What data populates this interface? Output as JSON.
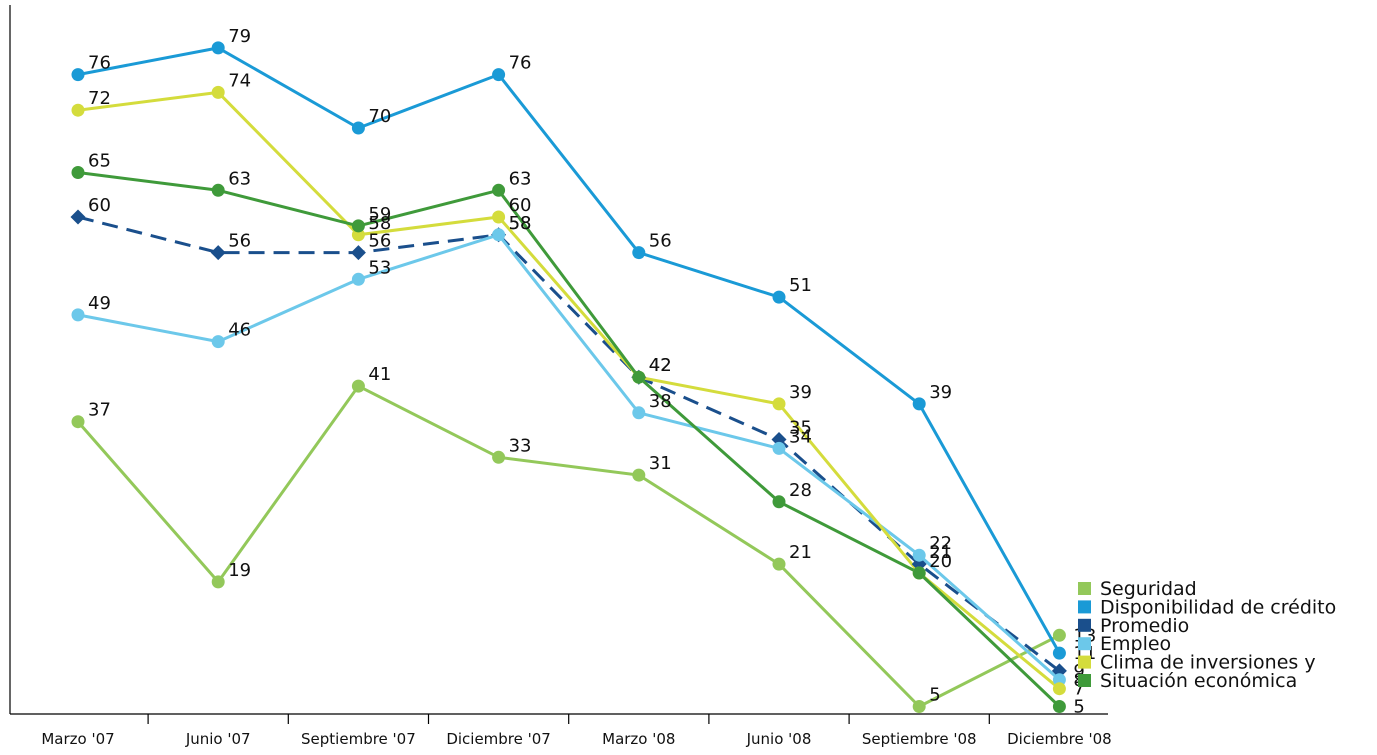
{
  "chart_data": {
    "type": "line",
    "title": "",
    "xlabel": "",
    "ylabel": "",
    "categories": [
      "Marzo '07",
      "Junio '07",
      "Septiembre '07",
      "Diciembre '07",
      "Marzo '08",
      "Junio '08",
      "Septiembre '08",
      "Diciembre '08"
    ],
    "ylim": [
      0,
      83
    ],
    "grid": false,
    "legend_position": "bottom-right",
    "legend": [
      "Seguridad",
      "Disponibilidad de crédito",
      "Promedio",
      "Empleo",
      "Clima de inversiones y",
      "Situación económica"
    ],
    "series": [
      {
        "name": "Seguridad",
        "color": "#93c85a",
        "marker": "circle",
        "dashed": false,
        "values": [
          37,
          19,
          41,
          33,
          31,
          21,
          5,
          13
        ]
      },
      {
        "name": "Disponibilidad de crédito",
        "color": "#1a9ad6",
        "marker": "circle",
        "dashed": false,
        "values": [
          76,
          79,
          70,
          76,
          56,
          51,
          39,
          11
        ]
      },
      {
        "name": "Promedio",
        "color": "#1a4f8c",
        "marker": "diamond",
        "dashed": true,
        "values": [
          60,
          56,
          56,
          58,
          42,
          35,
          21,
          9
        ]
      },
      {
        "name": "Empleo",
        "color": "#6cc8ea",
        "marker": "circle",
        "dashed": false,
        "values": [
          49,
          46,
          53,
          58,
          38,
          34,
          22,
          8
        ]
      },
      {
        "name": "Clima de inversiones y",
        "color": "#d4dc3c",
        "marker": "circle",
        "dashed": false,
        "values": [
          72,
          74,
          58,
          60,
          42,
          39,
          20,
          7
        ]
      },
      {
        "name": "Situación económica",
        "color": "#3f9a3a",
        "marker": "circle",
        "dashed": false,
        "values": [
          65,
          63,
          59,
          63,
          42,
          28,
          20,
          5
        ]
      }
    ],
    "data_labels": [
      [
        "37",
        "19",
        "41",
        "33",
        "31",
        "21",
        "5",
        "13"
      ],
      [
        "76",
        "79",
        "70",
        "76",
        "56",
        "51",
        "39",
        "11"
      ],
      [
        "60",
        "56",
        "56",
        "58",
        "42",
        "35",
        "21",
        "9"
      ],
      [
        "49",
        "46",
        "53",
        "58",
        "38",
        "34",
        "22",
        "8"
      ],
      [
        "72",
        "74",
        "58",
        "60",
        "42",
        "39",
        "",
        "7"
      ],
      [
        "65",
        "63",
        "59",
        "63",
        "",
        "28",
        "20",
        "5"
      ]
    ]
  }
}
